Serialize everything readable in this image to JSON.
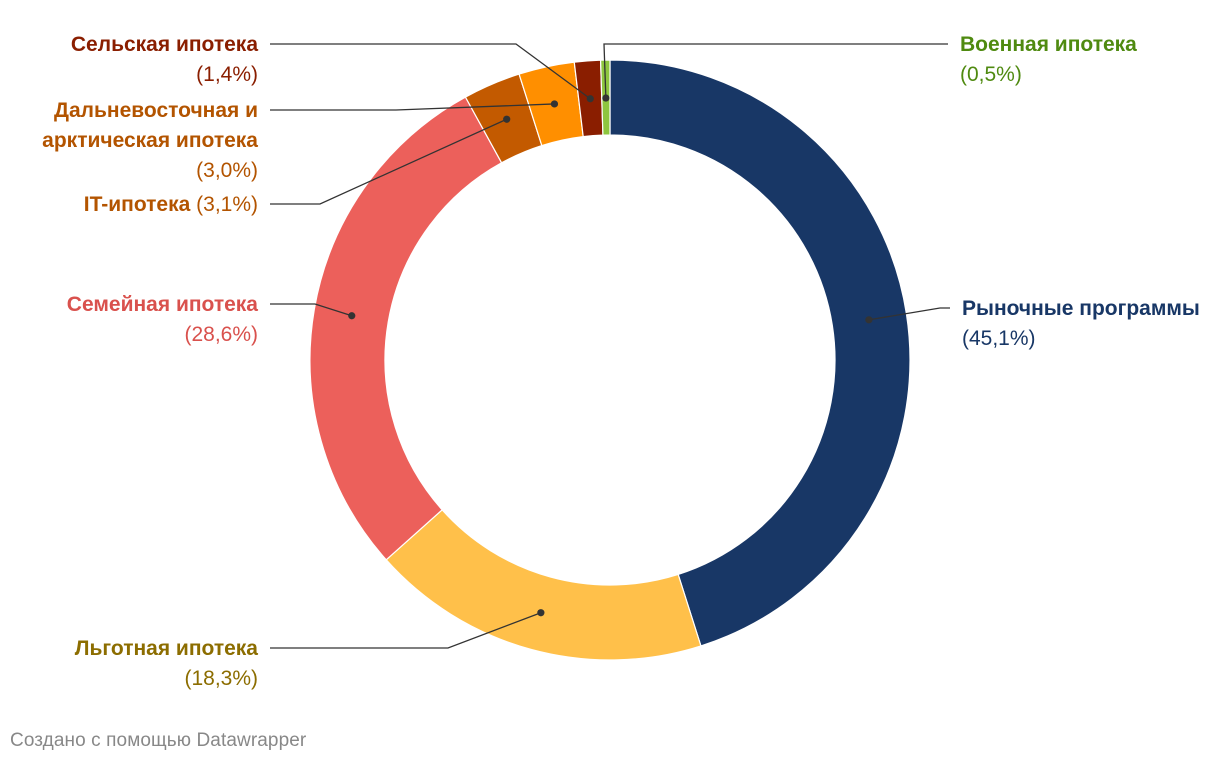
{
  "chart_data": {
    "type": "pie",
    "variant": "donut",
    "title": "",
    "start": "top",
    "direction": "clockwise",
    "slices": [
      {
        "name": "Рыночные программы",
        "value": 45.1,
        "display": "(45,1%)",
        "color": "#183766",
        "text_color": "#183766"
      },
      {
        "name": "Льготная ипотека",
        "value": 18.3,
        "display": "(18,3%)",
        "color": "#ffc04a",
        "text_color": "#8c6d00"
      },
      {
        "name": "Семейная ипотека",
        "value": 28.6,
        "display": "(28,6%)",
        "color": "#ec605b",
        "text_color": "#d9514d"
      },
      {
        "name": "IT-ипотека",
        "value": 3.1,
        "display": "(3,1%)",
        "color": "#c35a00",
        "text_color": "#b35400"
      },
      {
        "name": "Дальневосточная и арктическая ипотека",
        "name_lines": [
          "Дальневосточная и",
          "арктическая ипотека"
        ],
        "value": 3.0,
        "display": "(3,0%)",
        "color": "#ff8f00",
        "text_color": "#b35400"
      },
      {
        "name": "Сельская ипотека",
        "value": 1.4,
        "display": "(1,4%)",
        "color": "#8a1e00",
        "text_color": "#8a1e00"
      },
      {
        "name": "Военная ипотека",
        "value": 0.5,
        "display": "(0,5%)",
        "color": "#8ec63f",
        "text_color": "#4f8a10"
      }
    ]
  },
  "footer": {
    "credit": "Создано с помощью Datawrapper"
  }
}
